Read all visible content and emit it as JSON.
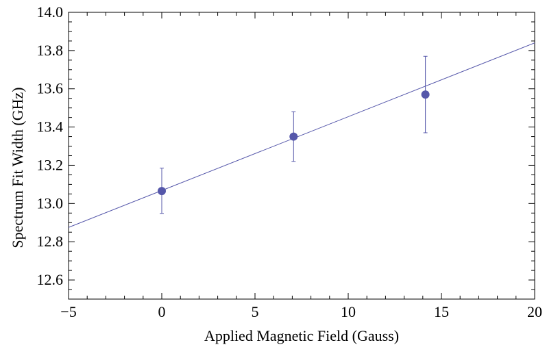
{
  "chart_data": {
    "type": "scatter",
    "title": "",
    "xlabel": "Applied Magnetic Field (Gauss)",
    "ylabel": "Spectrum Fit Width (GHz)",
    "xlim": [
      -5,
      20
    ],
    "ylim": [
      12.5,
      14.0
    ],
    "x_ticks": [
      -5,
      0,
      5,
      10,
      15,
      20
    ],
    "x_tick_labels": [
      "−5",
      "0",
      "5",
      "10",
      "15",
      "20"
    ],
    "y_ticks": [
      12.6,
      12.8,
      13.0,
      13.2,
      13.4,
      13.6,
      13.8,
      14.0
    ],
    "y_tick_labels": [
      "12.6",
      "12.8",
      "13.0",
      "13.2",
      "13.4",
      "13.6",
      "13.8",
      "14.0"
    ],
    "grid": false,
    "frame": true,
    "points": [
      {
        "x": 0.0,
        "y": 13.065,
        "err_low": 12.948,
        "err_high": 13.185
      },
      {
        "x": 7.07,
        "y": 13.35,
        "err_low": 13.22,
        "err_high": 13.48
      },
      {
        "x": 14.14,
        "y": 13.57,
        "err_low": 13.37,
        "err_high": 13.77
      }
    ],
    "fit_line": {
      "x": [
        -5,
        20
      ],
      "y": [
        12.875,
        13.84
      ]
    },
    "colors": {
      "series": "#5557aa",
      "axis": "#000000"
    }
  }
}
